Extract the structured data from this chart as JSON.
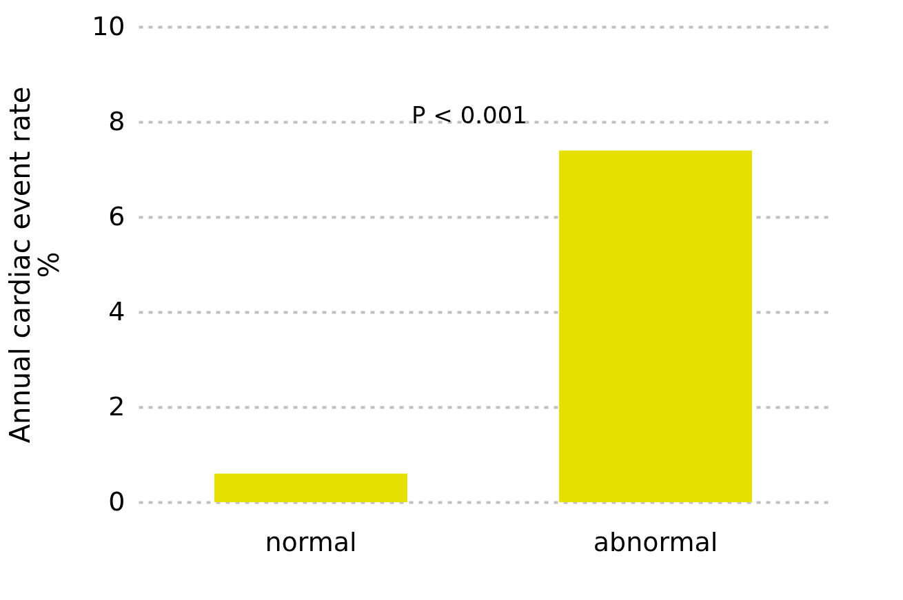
{
  "chart_data": {
    "type": "bar",
    "ylabel": "Annual cardiac event rate\n%",
    "categories": [
      "normal",
      "abnormal"
    ],
    "values": [
      0.6,
      7.4
    ],
    "color": "#e6e000",
    "ylim": [
      0,
      10
    ],
    "yticks": [
      0,
      2,
      4,
      6,
      8,
      10
    ],
    "grid": "y",
    "annotations": [
      "P < 0.001"
    ]
  }
}
